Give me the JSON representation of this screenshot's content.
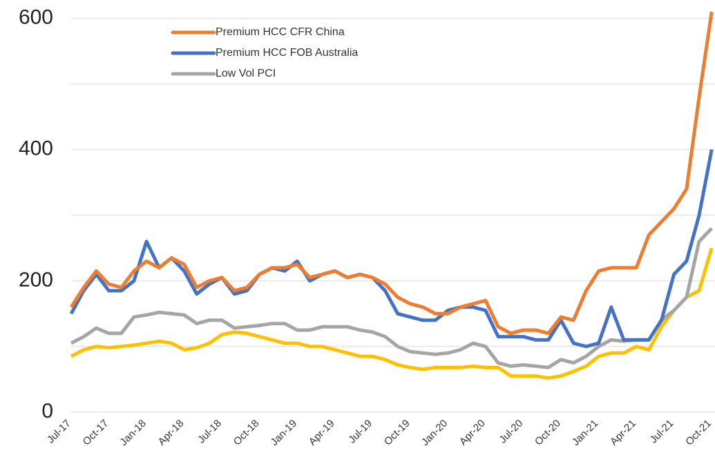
{
  "chart_data": {
    "type": "line",
    "categories": [
      "Jul-17",
      null,
      null,
      "Oct-17",
      null,
      null,
      "Jan-18",
      null,
      null,
      "Apr-18",
      null,
      null,
      "Jul-18",
      null,
      null,
      "Oct-18",
      null,
      null,
      "Jan-19",
      null,
      null,
      "Apr-19",
      null,
      null,
      "Jul-19",
      null,
      null,
      "Oct-19",
      null,
      null,
      "Jan-20",
      null,
      null,
      "Apr-20",
      null,
      null,
      "Jul-20",
      null,
      null,
      "Oct-20",
      null,
      null,
      "Jan-21",
      null,
      null,
      "Apr-21",
      null,
      null,
      "Jul-21",
      null,
      null,
      "Oct-21"
    ],
    "series": [
      {
        "name": "Premium HCC CFR China",
        "color": "#ed7d31",
        "values": [
          160,
          190,
          215,
          195,
          190,
          215,
          230,
          220,
          235,
          225,
          190,
          200,
          205,
          185,
          190,
          210,
          220,
          220,
          225,
          205,
          210,
          215,
          205,
          210,
          205,
          195,
          175,
          165,
          160,
          150,
          150,
          160,
          165,
          170,
          130,
          120,
          125,
          125,
          120,
          145,
          140,
          185,
          215,
          220,
          220,
          220,
          270,
          290,
          310,
          340,
          480,
          610
        ]
      },
      {
        "name": "Premium HCC FOB Australia",
        "color": "#4472c4",
        "values": [
          150,
          185,
          210,
          185,
          185,
          200,
          260,
          220,
          235,
          215,
          180,
          195,
          205,
          180,
          185,
          210,
          220,
          215,
          230,
          200,
          210,
          215,
          205,
          210,
          205,
          185,
          150,
          145,
          140,
          140,
          155,
          160,
          160,
          155,
          115,
          115,
          115,
          110,
          110,
          140,
          105,
          100,
          105,
          160,
          110,
          110,
          110,
          140,
          210,
          230,
          300,
          400
        ]
      },
      {
        "name": "Low Vol PCI",
        "color": "#a5a5a5",
        "values": [
          105,
          115,
          128,
          120,
          120,
          145,
          148,
          152,
          150,
          148,
          135,
          140,
          140,
          128,
          130,
          132,
          135,
          135,
          125,
          125,
          130,
          130,
          130,
          125,
          122,
          115,
          100,
          92,
          90,
          88,
          90,
          95,
          105,
          100,
          75,
          70,
          72,
          70,
          68,
          80,
          75,
          85,
          100,
          110,
          108,
          110,
          110,
          140,
          155,
          175,
          260,
          280
        ]
      },
      {
        "color": "#ffc000",
        "values": [
          85,
          95,
          100,
          98,
          100,
          102,
          105,
          108,
          105,
          95,
          98,
          105,
          118,
          122,
          120,
          115,
          110,
          105,
          105,
          100,
          100,
          95,
          90,
          85,
          85,
          80,
          72,
          68,
          65,
          68,
          68,
          68,
          70,
          68,
          68,
          55,
          55,
          55,
          52,
          55,
          62,
          70,
          85,
          90,
          90,
          100,
          95,
          130,
          155,
          175,
          185,
          250
        ]
      }
    ],
    "ylim": [
      0,
      628
    ],
    "yticks": [
      0,
      200,
      400,
      600
    ],
    "grid_yticks": [
      0,
      100,
      200,
      300,
      400,
      500,
      600
    ],
    "grid": true
  }
}
